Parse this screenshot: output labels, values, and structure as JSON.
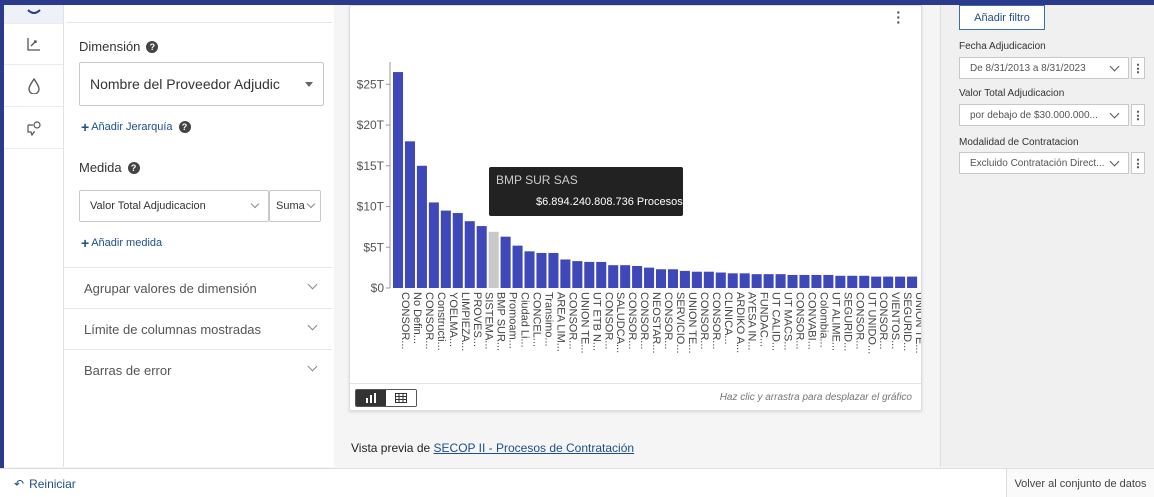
{
  "left_panel": {
    "dimension_label": "Dimensión",
    "dimension_value": "Nombre del Proveedor Adjudic",
    "add_hierarchy": "Añadir Jerarquía",
    "measure_label": "Medida",
    "measure_value": "Valor Total Adjudicacion",
    "aggregation": "Suma",
    "add_measure": "Añadir medida",
    "sections": [
      "Agrupar valores de dimensión",
      "Límite de columnas mostradas",
      "Barras de error"
    ]
  },
  "chart_card": {
    "hint": "Haz clic y arrastra para desplazar el gráfico",
    "tooltip_name": "BMP SUR SAS",
    "tooltip_value": "$6.894.240.808.736 Procesos"
  },
  "chart_data": {
    "type": "bar",
    "ylim": [
      0,
      27
    ],
    "y_ticks": [
      "$0",
      "$5T",
      "$10T",
      "$15T",
      "$20T",
      "$25T"
    ],
    "categories": [
      "CONSOR...",
      "No Defin...",
      "CONSOR...",
      "Constructi...",
      "YOELMA...",
      "LIMPIEZA...",
      "PROVES...",
      "SISTEMA...",
      "BMP SUR...",
      "Promoam...",
      "Ciudad Li...",
      "CONCEL...",
      "Transimo...",
      "AREA LIM...",
      "CONSOR...",
      "UNION TE...",
      "UT ETB N...",
      "CONSOR...",
      "SALUDCA...",
      "CONSOR...",
      "CONSOR...",
      "NEOSTAR...",
      "CONSOR...",
      "SERVICIO...",
      "UNION TE...",
      "CONSOR...",
      "CONSOR...",
      "CLINICA...",
      "ARDIKO A...",
      "AYESA IN...",
      "FUNDAC...",
      "UT CALID...",
      "UT MACS...",
      "CONSOR...",
      "CONVABI...",
      "Colombia...",
      "UT ALIME...",
      "SEGURID...",
      "CONSOR...",
      "UT UNIDO...",
      "CONSOR...",
      "VIENTOS...",
      "SEGURID...",
      "UNION TE..."
    ],
    "values": [
      26.5,
      18,
      15,
      10.5,
      9.5,
      9.2,
      8.2,
      7.6,
      6.9,
      6.3,
      5.2,
      4.5,
      4.3,
      4.3,
      3.5,
      3.3,
      3.2,
      3.2,
      2.8,
      2.8,
      2.7,
      2.5,
      2.3,
      2.3,
      2.1,
      2.0,
      2.0,
      1.9,
      1.8,
      1.8,
      1.7,
      1.7,
      1.7,
      1.6,
      1.6,
      1.6,
      1.6,
      1.5,
      1.5,
      1.5,
      1.4,
      1.4,
      1.4,
      1.4
    ],
    "highlight_index": 8,
    "bar_color": "#3f48b8",
    "highlight_color": "#c9c9c9",
    "grid": false
  },
  "preview": {
    "prefix": "Vista previa de",
    "link": "SECOP II - Procesos de Contratación"
  },
  "filters": {
    "add_button": "Añadir filtro",
    "items": [
      {
        "label": "Fecha Adjudicacion",
        "value": "De 8/31/2013 a 8/31/2023"
      },
      {
        "label": "Valor Total Adjudicacion",
        "value": "por debajo de $30.000.000..."
      },
      {
        "label": "Modalidad de Contratacion",
        "value": "Excluido Contratación Direct..."
      }
    ]
  },
  "bottom": {
    "reset": "Reiniciar",
    "back": "Volver al conjunto de datos"
  },
  "icons": [
    "database-icon",
    "scatter-chart-icon",
    "drop-icon",
    "comment-settings-icon",
    "bar-chart-icon",
    "table-icon",
    "refresh-icon",
    "kebab-menu-icon"
  ]
}
